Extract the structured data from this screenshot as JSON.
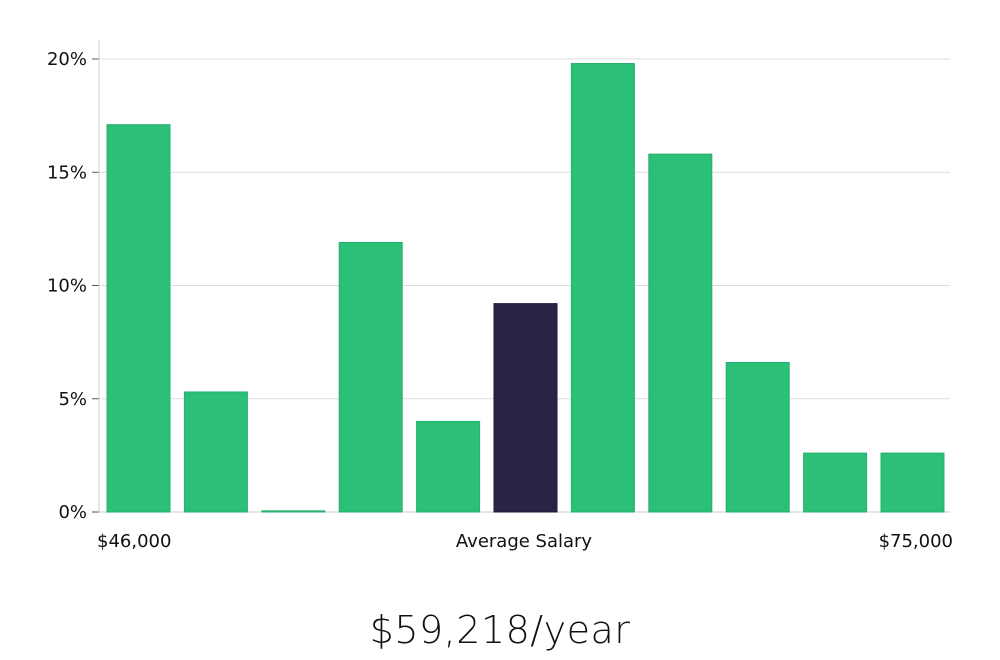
{
  "chart_data": {
    "type": "bar",
    "title": "",
    "xlabel": "Average Salary",
    "ylabel": "",
    "x_range_labels": {
      "min": "$46,000",
      "max": "$75,000"
    },
    "ylim": [
      0,
      20
    ],
    "y_ticks": [
      0,
      5,
      10,
      15,
      20
    ],
    "y_tick_labels": [
      "0%",
      "5%",
      "10%",
      "15%",
      "20%"
    ],
    "values": [
      17.1,
      5.3,
      0.05,
      11.9,
      4.0,
      9.2,
      19.8,
      15.8,
      6.6,
      2.6,
      2.6
    ],
    "highlight_index": 5,
    "colors": {
      "bar": "#2bbf78",
      "highlight": "#272445",
      "grid": "#dddddd",
      "axis": "#cccccc"
    },
    "grid": true
  },
  "summary": {
    "salary": "$59,218/year"
  }
}
